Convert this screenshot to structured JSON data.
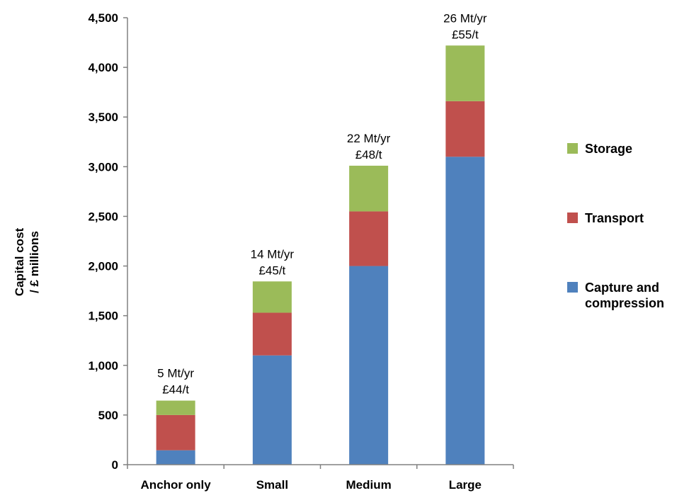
{
  "chart_data": {
    "type": "bar",
    "stacked": true,
    "categories": [
      "Anchor only",
      "Small",
      "Medium",
      "Large"
    ],
    "series": [
      {
        "name": "Capture and compression",
        "color": "#4f81bd",
        "values": [
          145,
          1100,
          2000,
          3100
        ]
      },
      {
        "name": "Transport",
        "color": "#c0504d",
        "values": [
          355,
          430,
          550,
          560
        ]
      },
      {
        "name": "Storage",
        "color": "#9bbb59",
        "values": [
          145,
          315,
          460,
          560
        ]
      }
    ],
    "annotations": [
      {
        "line1": "5 Mt/yr",
        "line2": "£44/t"
      },
      {
        "line1": "14 Mt/yr",
        "line2": "£45/t"
      },
      {
        "line1": "22 Mt/yr",
        "line2": "£48/t"
      },
      {
        "line1": "26 Mt/yr",
        "line2": "£55/t"
      }
    ],
    "ylabel": [
      "Capital cost",
      "/ £ millions"
    ],
    "yticks": [
      "0",
      "500",
      "1,000",
      "1,500",
      "2,000",
      "2,500",
      "3,000",
      "3,500",
      "4,000",
      "4,500"
    ],
    "ylim": [
      0,
      4500
    ],
    "ytick_step": 500,
    "legend_order": [
      "Storage",
      "Transport",
      "Capture and compression"
    ],
    "legend_labels": {
      "Storage": [
        "Storage"
      ],
      "Transport": [
        "Transport"
      ],
      "Capture and compression": [
        "Capture and",
        "compression"
      ]
    },
    "legend_position": "right",
    "grid": false
  }
}
